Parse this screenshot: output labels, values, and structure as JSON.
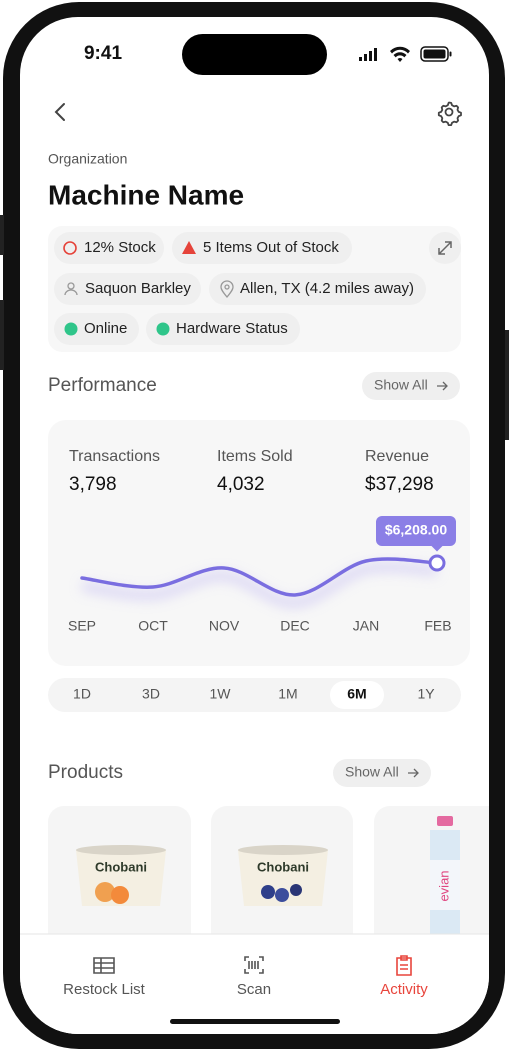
{
  "status": {
    "time": "9:41"
  },
  "header": {
    "organization": "Organization",
    "title": "Machine Name"
  },
  "tags": [
    "12% Stock",
    "5 Items Out of Stock",
    "Saquon Barkley",
    "Allen, TX (4.2 miles away)",
    "Online",
    "Hardware Status"
  ],
  "performance": {
    "title": "Performance",
    "show_all": "Show All",
    "stats": [
      {
        "label": "Transactions",
        "value": "3,798"
      },
      {
        "label": "Items Sold",
        "value": "4,032"
      },
      {
        "label": "Revenue",
        "value": "$37,298"
      }
    ]
  },
  "chart_data": {
    "type": "line",
    "categories": [
      "SEP",
      "OCT",
      "NOV",
      "DEC",
      "JAN",
      "FEB"
    ],
    "values": [
      5368,
      4864,
      5928,
      4416,
      6320,
      6208
    ],
    "value_labels": [
      null,
      null,
      null,
      null,
      null,
      "$6,208.00"
    ],
    "color": "#7a6ee0"
  },
  "ranges": [
    "1D",
    "3D",
    "1W",
    "1M",
    "6M",
    "1Y"
  ],
  "selected_range": "6M",
  "products": {
    "title": "Products",
    "show_all": "Show All"
  },
  "tabs": [
    "Restock List",
    "Scan",
    "Activity"
  ],
  "active_tab": "Activity"
}
